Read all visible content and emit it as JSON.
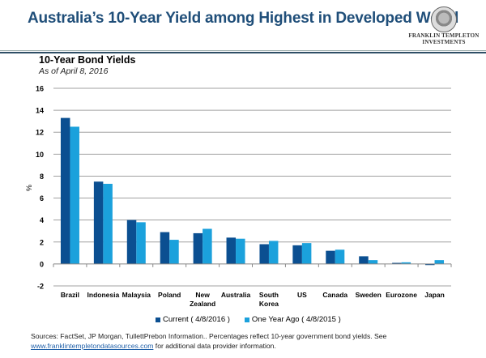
{
  "header": {
    "title": "Australia’s 10-Year Yield among Highest  in Developed World",
    "logo_line1": "FRANKLIN TEMPLETON",
    "logo_line2": "INVESTMENTS"
  },
  "colors": {
    "current": "#0b4f91",
    "one_year_ago": "#1ba1dc",
    "title": "#1f4e79",
    "gridline": "#a0a0a0"
  },
  "chart_data": {
    "type": "bar",
    "title": "10-Year Bond Yields",
    "subtitle": "As of April 8, 2016",
    "xlabel": "",
    "ylabel": "%",
    "ylim": [
      -2,
      16
    ],
    "yticks": [
      -2,
      0,
      2,
      4,
      6,
      8,
      10,
      12,
      14,
      16
    ],
    "grid": true,
    "legend_position": "bottom",
    "categories": [
      "Brazil",
      "Indonesia",
      "Malaysia",
      "Poland",
      "New Zealand",
      "Australia",
      "South Korea",
      "US",
      "Canada",
      "Sweden",
      "Eurozone",
      "Japan"
    ],
    "category_lines": [
      [
        "Brazil"
      ],
      [
        "Indonesia"
      ],
      [
        "Malaysia"
      ],
      [
        "Poland"
      ],
      [
        "New",
        "Zealand"
      ],
      [
        "Australia"
      ],
      [
        "South",
        "Korea"
      ],
      [
        "US"
      ],
      [
        "Canada"
      ],
      [
        "Sweden"
      ],
      [
        "Eurozone"
      ],
      [
        "Japan"
      ]
    ],
    "series": [
      {
        "name": "Current ( 4/8/2016 )",
        "values": [
          13.3,
          7.5,
          4.0,
          2.9,
          2.8,
          2.4,
          1.8,
          1.7,
          1.2,
          0.7,
          0.1,
          -0.1
        ]
      },
      {
        "name": "One Year Ago ( 4/8/2015 )",
        "values": [
          12.5,
          7.3,
          3.8,
          2.2,
          3.2,
          2.3,
          2.1,
          1.9,
          1.3,
          0.35,
          0.15,
          0.35
        ]
      }
    ]
  },
  "footer": {
    "sources_text": "Sources: FactSet, JP Morgan, TullettPrebon Information.. Percentages reflect 10-year government bond yields.  See",
    "link_text": "www.franklintempletondatasources.com",
    "after_link_text": " for additional data provider information."
  }
}
